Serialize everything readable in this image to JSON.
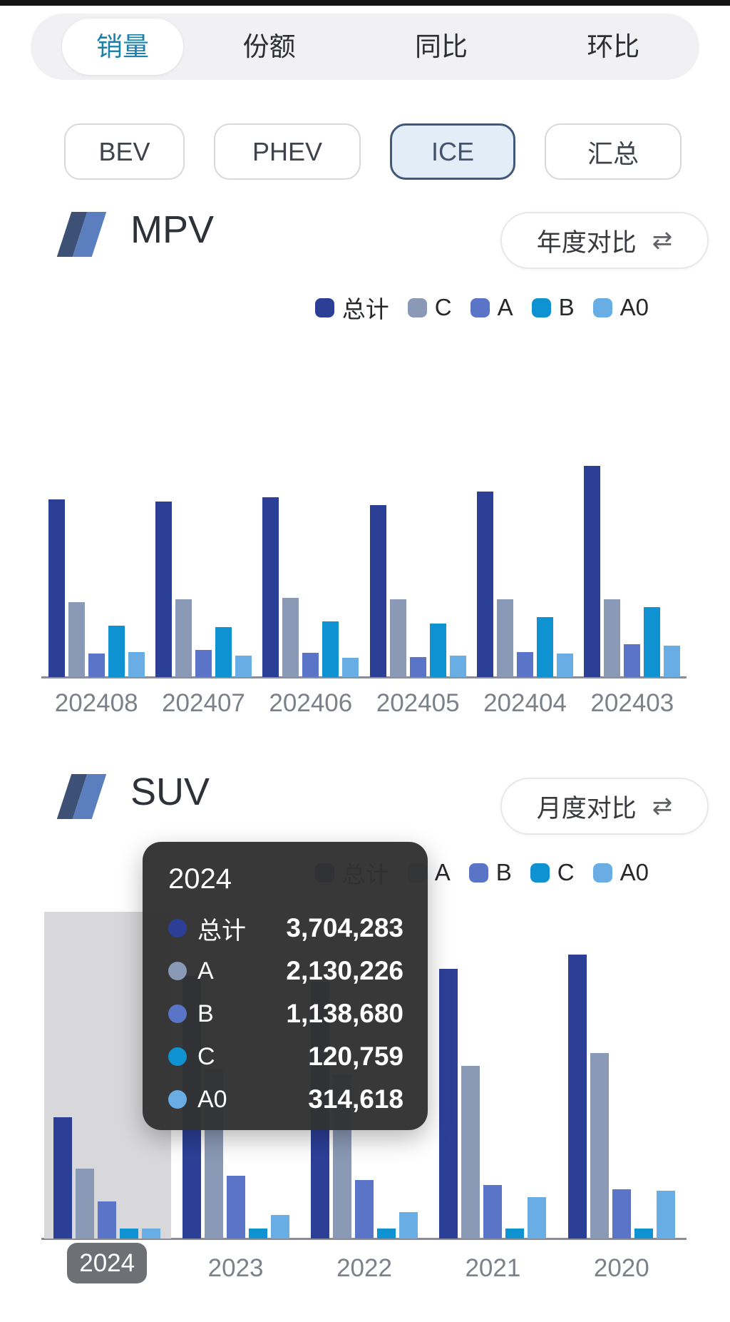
{
  "tabs": {
    "items": [
      {
        "label": "销量",
        "active": true
      },
      {
        "label": "份额",
        "active": false
      },
      {
        "label": "同比",
        "active": false
      },
      {
        "label": "环比",
        "active": false
      }
    ]
  },
  "filters": {
    "items": [
      {
        "label": "BEV",
        "active": false
      },
      {
        "label": "PHEV",
        "active": false
      },
      {
        "label": "ICE",
        "active": true
      },
      {
        "label": "汇总",
        "active": false
      }
    ]
  },
  "colors": {
    "total_navy": "#2c3f97",
    "gray_blue": "#8a99b5",
    "medium_blue": "#5a75c8",
    "cyan_blue": "#0f92d2",
    "light_blue": "#68aee4",
    "accent_tab": "#1c80ad",
    "axis_gray": "#8a8d93",
    "selected_band": "#d8d8da",
    "selected_label_bg": "#6d7176",
    "tooltip_bg": "#323232"
  },
  "chart_data": [
    {
      "type": "bar",
      "title": "MPV",
      "toggle_label": "年度对比",
      "toggle_icon": "⇄",
      "legend": [
        "总计",
        "C",
        "A",
        "B",
        "A0"
      ],
      "legend_position": "top-right",
      "grid": false,
      "categories": [
        "202408",
        "202407",
        "202406",
        "202405",
        "202404",
        "202403"
      ],
      "units": "relative height, est. (max = 100)",
      "ylim": [
        0,
        100
      ],
      "series": [
        {
          "name": "总计",
          "color": "#2c3f97",
          "values": [
            84,
            83,
            85,
            81.5,
            88,
            100
          ]
        },
        {
          "name": "C",
          "color": "#8a99b5",
          "values": [
            35.5,
            37,
            37.5,
            37,
            37,
            37
          ]
        },
        {
          "name": "A",
          "color": "#5a75c8",
          "values": [
            11,
            13,
            11.5,
            9.5,
            12,
            15.5
          ]
        },
        {
          "name": "B",
          "color": "#0f92d2",
          "values": [
            24.5,
            23.5,
            26.5,
            25.5,
            28.5,
            33
          ]
        },
        {
          "name": "A0",
          "color": "#68aee4",
          "values": [
            12,
            10,
            9,
            10,
            11,
            15
          ]
        }
      ]
    },
    {
      "type": "bar",
      "title": "SUV",
      "toggle_label": "月度对比",
      "toggle_icon": "⇄",
      "legend": [
        "总计",
        "A",
        "B",
        "C",
        "A0"
      ],
      "legend_position": "top-right",
      "grid": false,
      "categories": [
        "2024",
        "2023",
        "2022",
        "2021",
        "2020"
      ],
      "selected_category": "2024",
      "units": "vehicles (2024 exact from tooltip, other years estimated from bars)",
      "series": [
        {
          "name": "总计",
          "color": "#2c3f97",
          "values": [
            3704283,
            8020000,
            7840000,
            8240000,
            8670000
          ]
        },
        {
          "name": "A",
          "color": "#8a99b5",
          "values": [
            2130226,
            5190000,
            5010000,
            5270000,
            5670000
          ]
        },
        {
          "name": "B",
          "color": "#5a75c8",
          "values": [
            1138680,
            1920000,
            1790000,
            1630000,
            1500000
          ]
        },
        {
          "name": "C",
          "color": "#0f92d2",
          "values": [
            120759,
            130000,
            130000,
            130000,
            130000
          ]
        },
        {
          "name": "A0",
          "color": "#68aee4",
          "values": [
            314618,
            719000,
            806000,
            1260000,
            1460000
          ]
        }
      ],
      "tooltip": {
        "title": "2024",
        "rows": [
          {
            "label": "总计",
            "value": "3,704,283"
          },
          {
            "label": "A",
            "value": "2,130,226"
          },
          {
            "label": "B",
            "value": "1,138,680"
          },
          {
            "label": "C",
            "value": "120,759"
          },
          {
            "label": "A0",
            "value": "314,618"
          }
        ]
      }
    }
  ]
}
